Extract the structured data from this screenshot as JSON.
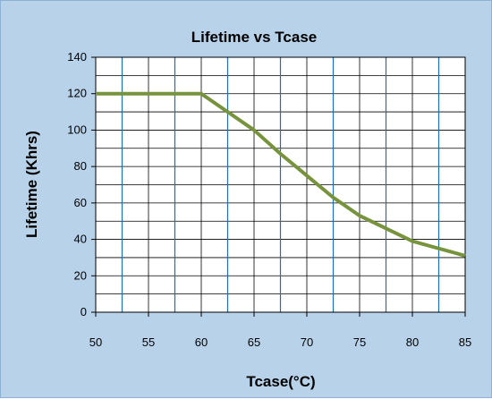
{
  "chart_data": {
    "type": "line",
    "title": "Lifetime vs Tcase",
    "xlabel": "Tcase(°C)",
    "ylabel": "Lifetime (Khrs)",
    "xlim": [
      50,
      85
    ],
    "ylim": [
      0,
      140
    ],
    "x_ticks": [
      50,
      55,
      60,
      65,
      70,
      75,
      80,
      85
    ],
    "y_ticks": [
      0,
      20,
      40,
      60,
      80,
      100,
      120,
      140
    ],
    "x_tick_labels": [
      "50",
      "55",
      "60",
      "65",
      "70",
      "75",
      "80",
      "85"
    ],
    "y_tick_labels": [
      "0",
      "20",
      "40",
      "60",
      "80",
      "100",
      "120",
      "140"
    ],
    "grid": true,
    "legend": "none",
    "series": [
      {
        "x": [
          50,
          55,
          60,
          62.5,
          65,
          67.5,
          70,
          72.5,
          75,
          77.5,
          80,
          82.5,
          85
        ],
        "values": [
          120,
          120,
          120,
          110,
          100,
          87,
          75,
          63,
          53,
          46,
          39,
          35,
          31
        ],
        "color": "#77933c"
      }
    ],
    "colors": {
      "background": "#b8d2ea",
      "plot_area": "#ffffff",
      "major_vertical_grid": "#1f6fb5",
      "minor_grid": "#000000"
    }
  }
}
